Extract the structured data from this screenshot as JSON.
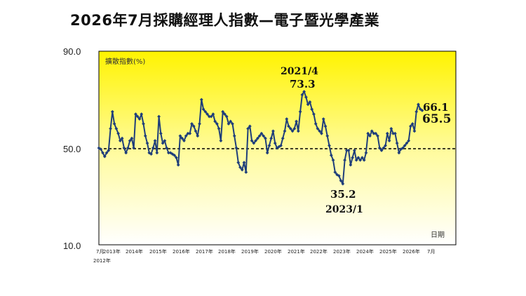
{
  "chart_data": {
    "type": "line",
    "title": "2026年7月採購經理人指數—電子暨光學產業",
    "ylabel": "擴散指數(%)",
    "xlabel": "日期",
    "ylim": [
      10,
      90
    ],
    "yticks": [
      "90.0",
      "50.0",
      "10.0"
    ],
    "reference_line": 50,
    "xticks": [
      "7月",
      "2013年",
      "2014年",
      "2015年",
      "2016年",
      "2017年",
      "2018年",
      "2019年",
      "2020年",
      "2021年",
      "2022年",
      "2023年",
      "2024年",
      "2025年",
      "2026年",
      "7月"
    ],
    "x_start_label": "2012年",
    "series": [
      {
        "values": [
          50,
          49.5,
          48,
          46.5,
          48,
          49,
          58,
          65,
          60,
          58,
          56,
          53,
          54,
          50,
          48,
          50,
          53,
          54,
          50,
          64,
          63,
          62,
          64,
          60,
          55,
          52,
          48,
          47.5,
          50,
          53,
          48,
          63,
          56,
          52,
          53,
          50,
          48,
          48,
          47.5,
          47,
          46,
          43,
          55,
          54,
          53,
          55,
          56,
          56,
          60,
          59,
          57,
          55,
          60,
          70,
          66,
          65,
          64,
          63,
          63,
          64,
          61,
          60,
          58,
          53,
          65,
          64,
          63,
          60,
          61,
          60,
          55,
          50,
          44,
          42,
          41,
          44,
          40,
          58,
          59,
          53,
          52,
          53,
          54,
          55,
          56,
          55,
          54,
          48,
          51,
          54,
          57,
          52,
          50,
          50.5,
          51,
          54,
          57,
          62,
          59,
          58,
          57,
          58,
          61,
          57,
          65,
          72,
          73.3,
          71,
          68,
          69,
          66,
          64,
          60,
          58,
          57,
          56,
          62,
          59,
          55,
          51,
          47,
          45,
          40,
          39,
          38.5,
          36.5,
          35.2,
          45,
          49,
          49,
          43,
          46,
          49,
          45,
          46,
          45,
          46,
          45,
          48,
          56,
          55,
          57,
          56,
          56,
          55,
          50,
          49,
          50,
          51,
          56,
          53,
          58,
          56,
          56,
          52,
          48,
          49.5,
          50,
          51,
          52,
          53,
          59,
          60,
          57,
          65,
          68,
          66.1,
          65.5
        ]
      }
    ],
    "annotations": [
      {
        "date": "2021/4",
        "value": "73.3"
      },
      {
        "date": "2023/1",
        "value": "35.2"
      },
      {
        "value": "66.1"
      },
      {
        "value": "65.5"
      }
    ]
  }
}
